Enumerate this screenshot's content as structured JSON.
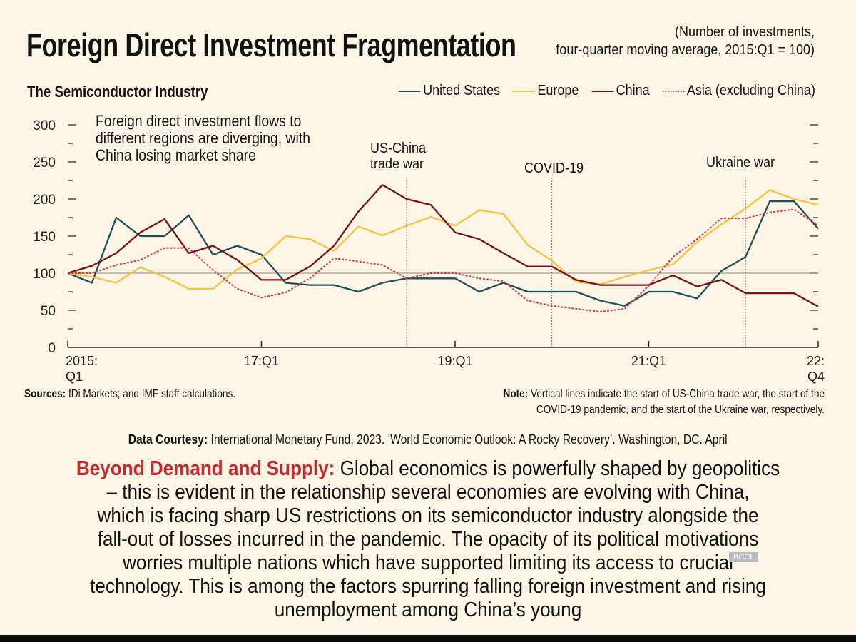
{
  "header": {
    "title": "Foreign Direct Investment Fragmentation",
    "unit_note_lines": [
      "(Number of investments,",
      "four-quarter moving average, 2015:Q1 = 100)"
    ],
    "subtitle": "The Semiconductor Industry"
  },
  "annotation_lines": [
    "Foreign direct investment flows to",
    "different regions are diverging, with",
    "China losing market share"
  ],
  "chart_data": {
    "type": "line",
    "title": "Foreign Direct Investment Fragmentation",
    "subtitle": "The Semiconductor Industry",
    "ylabel": "Number of investments, four-quarter moving average, 2015:Q1 = 100",
    "ylim": [
      0,
      300
    ],
    "yticks": [
      0,
      50,
      100,
      150,
      200,
      250,
      300
    ],
    "x_range": [
      "2015:Q1",
      "2022:Q4"
    ],
    "xtick_labels": [
      {
        "index": 0,
        "lines": [
          "2015:",
          "Q1"
        ]
      },
      {
        "index": 8,
        "lines": [
          "17:Q1"
        ]
      },
      {
        "index": 16,
        "lines": [
          "19:Q1"
        ]
      },
      {
        "index": 24,
        "lines": [
          "21:Q1"
        ]
      },
      {
        "index": 31,
        "lines": [
          "22:",
          "Q4"
        ]
      }
    ],
    "reference_line": 100,
    "legend_position": "top-right",
    "events": [
      {
        "index": 14,
        "label_lines": [
          "US-China",
          "trade war"
        ]
      },
      {
        "index": 20,
        "label_lines": [
          "COVID-19"
        ]
      },
      {
        "index": 28,
        "label_lines": [
          "Ukraine war"
        ]
      }
    ],
    "series": [
      {
        "name": "United States",
        "color": "#1d4f5c",
        "dashed": false,
        "values": [
          100,
          87,
          175,
          150,
          150,
          178,
          125,
          137,
          125,
          87,
          84,
          84,
          75,
          87,
          93,
          93,
          93,
          75,
          87,
          75,
          75,
          75,
          63,
          56,
          75,
          75,
          66,
          103,
          122,
          197,
          197,
          160
        ]
      },
      {
        "name": "Europe",
        "color": "#f2c53d",
        "dashed": false,
        "values": [
          100,
          95,
          87,
          108,
          95,
          79,
          79,
          105,
          120,
          150,
          146,
          130,
          163,
          151,
          164,
          176,
          164,
          185,
          180,
          138,
          117,
          88,
          85,
          95,
          104,
          112,
          142,
          166,
          187,
          212,
          200,
          192
        ]
      },
      {
        "name": "China",
        "color": "#7a0f14",
        "dashed": false,
        "values": [
          100,
          110,
          127,
          155,
          173,
          127,
          137,
          118,
          91,
          91,
          109,
          137,
          183,
          219,
          200,
          192,
          155,
          146,
          127,
          109,
          109,
          91,
          84,
          84,
          84,
          97,
          82,
          91,
          73,
          73,
          73,
          55
        ]
      },
      {
        "name": "Asia (excluding China)",
        "color": "#c8384a",
        "dashed": true,
        "values": [
          100,
          100,
          111,
          118,
          134,
          134,
          104,
          79,
          67,
          74,
          93,
          120,
          116,
          111,
          93,
          100,
          100,
          93,
          89,
          63,
          56,
          52,
          48,
          52,
          83,
          122,
          146,
          174,
          174,
          182,
          186,
          164
        ]
      }
    ]
  },
  "footer": {
    "sources_label": "Sources:",
    "sources_text": " fDi Markets; and IMF staff calculations.",
    "note_label": "Note:",
    "note_line1": " Vertical lines indicate the start of US-China trade war, the start of the",
    "note_line2": "COVID-19 pandemic, and the start of the Ukraine war, respectively.",
    "courtesy_label": "Data Courtesy:",
    "courtesy_text": " International Monetary Fund, 2023. ‘World Economic Outlook: A Rocky Recovery’. Washington, DC. April"
  },
  "paragraph": {
    "lead": "Beyond Demand and Supply:",
    "first_line_rest": " Global economics is powerfully shaped by geopolitics",
    "lines": [
      "– this is evident in the relationship several economies are evolving with China,",
      "which is facing sharp US restrictions on its semiconductor industry alongside the",
      "fall-out of losses incurred in the pandemic. The opacity of its political motivations",
      "worries multiple nations which have supported limiting its access to crucial",
      "technology. This is among the factors spurring falling foreign investment and rising",
      "unemployment among China’s young"
    ]
  },
  "watermark": "BCCL",
  "colors": {
    "background": "#fdf6e6",
    "accent_red": "#c8282d"
  }
}
